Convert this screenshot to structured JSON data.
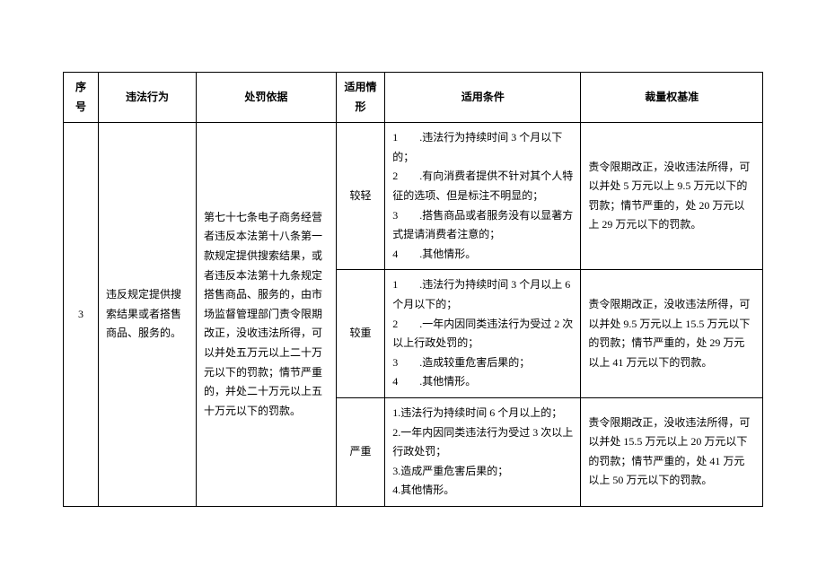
{
  "headers": {
    "seq": "序号",
    "behavior": "违法行为",
    "basis": "处罚依据",
    "situation": "适用情形",
    "condition": "适用条件",
    "standard": "裁量权基准"
  },
  "row": {
    "seq": "3",
    "behavior": "违反规定提供搜索结果或者搭售商品、服务的。",
    "basis": "第七十七条电子商务经营者违反本法第十八条第一款规定提供搜索结果，或者违反本法第十九条规定搭售商品、服务的，由市场监督管理部门责令限期改正，没收违法所得，可以并处五万元以上二十万元以下的罚款；情节严重的，并处二十万元以上五十万元以下的罚款。",
    "levels": [
      {
        "situation": "较轻",
        "conditions": [
          "1　　.违法行为持续时间 3 个月以下的；",
          "2　　.有向消费者提供不针对其个人特征的选项、但是标注不明显的；",
          "3　　.搭售商品或者服务没有以显著方式提请消费者注意的；",
          "4　　.其他情形。"
        ],
        "standard": "责令限期改正，没收违法所得，可以并处 5 万元以上 9.5 万元以下的罚款；情节严重的，处 20 万元以上 29 万元以下的罚款。"
      },
      {
        "situation": "较重",
        "conditions": [
          "1　　.违法行为持续时间 3 个月以上 6 个月以下的；",
          "2　　.一年内因同类违法行为受过 2 次以上行政处罚的；",
          "3　　.造成较重危害后果的；",
          "4　　.其他情形。"
        ],
        "standard": "责令限期改正，没收违法所得，可以并处 9.5 万元以上 15.5 万元以下的罚款；情节严重的，处 29 万元以上 41 万元以下的罚款。"
      },
      {
        "situation": "严重",
        "conditions": [
          "1.违法行为持续时间 6 个月以上的；",
          "2.一年内因同类违法行为受过 3 次以上行政处罚；",
          "3.造成严重危害后果的；",
          "4.其他情形。"
        ],
        "standard": "责令限期改正，没收违法所得，可以并处 15.5 万元以上 20 万元以下的罚款；情节严重的，处 41 万元以上 50 万元以下的罚款。"
      }
    ]
  }
}
